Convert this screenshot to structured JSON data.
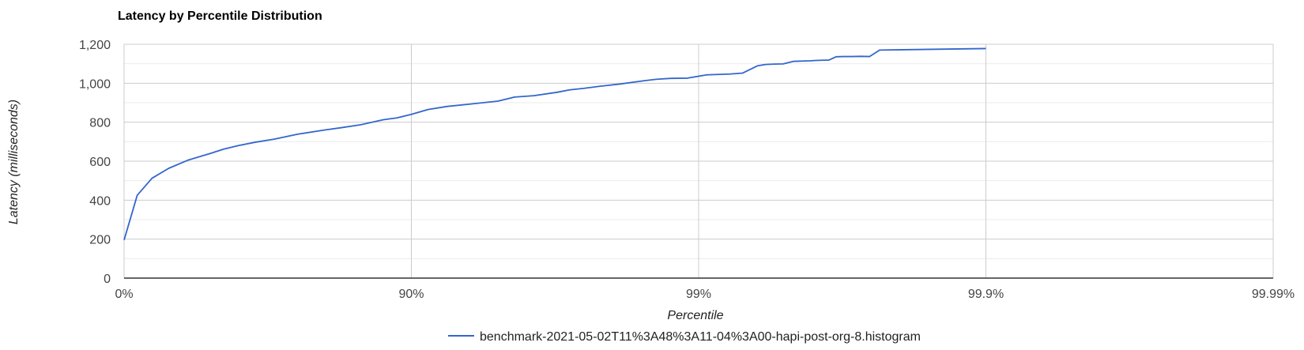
{
  "chart_data": {
    "type": "line",
    "title": "Latency by Percentile Distribution",
    "xlabel": "Percentile",
    "ylabel": "Latency (milliseconds)",
    "x_scale": "log-percentile",
    "x_ticks": [
      "0%",
      "90%",
      "99%",
      "99.9%",
      "99.99%"
    ],
    "x_tick_values": [
      0,
      90,
      99,
      99.9,
      99.99
    ],
    "ylim": [
      0,
      1200
    ],
    "y_ticks": [
      "0",
      "200",
      "400",
      "600",
      "800",
      "1,000",
      "1,200"
    ],
    "y_tick_values": [
      0,
      200,
      400,
      600,
      800,
      1000,
      1200
    ],
    "grid": true,
    "legend_position": "bottom",
    "series": [
      {
        "name": "benchmark-2021-05-02T11%3A48%3A11-04%3A00-hapi-post-org-8.histogram",
        "color": "#3366cc",
        "points": [
          [
            0,
            195
          ],
          [
            10,
            425
          ],
          [
            20,
            512
          ],
          [
            30,
            563
          ],
          [
            40,
            605
          ],
          [
            50,
            640
          ],
          [
            55,
            662
          ],
          [
            60,
            680
          ],
          [
            65,
            697
          ],
          [
            70,
            713
          ],
          [
            75,
            738
          ],
          [
            80,
            760
          ],
          [
            82.5,
            772
          ],
          [
            85,
            787
          ],
          [
            87.5,
            813
          ],
          [
            88.75,
            822
          ],
          [
            90,
            840
          ],
          [
            91.25,
            865
          ],
          [
            92.5,
            881
          ],
          [
            93.75,
            893
          ],
          [
            95,
            908
          ],
          [
            95.625,
            929
          ],
          [
            96.25,
            936
          ],
          [
            96.875,
            953
          ],
          [
            97.1875,
            966
          ],
          [
            97.5,
            974
          ],
          [
            97.8125,
            985
          ],
          [
            98.125,
            996
          ],
          [
            98.4375,
            1012
          ],
          [
            98.5938,
            1020
          ],
          [
            98.75,
            1025
          ],
          [
            98.9062,
            1026
          ],
          [
            99.0625,
            1043
          ],
          [
            99.1406,
            1045
          ],
          [
            99.2188,
            1047
          ],
          [
            99.2969,
            1052
          ],
          [
            99.375,
            1089
          ],
          [
            99.4141,
            1096
          ],
          [
            99.4531,
            1098
          ],
          [
            99.4922,
            1099
          ],
          [
            99.5312,
            1112
          ],
          [
            99.5508,
            1113
          ],
          [
            99.5703,
            1114
          ],
          [
            99.5898,
            1115
          ],
          [
            99.6094,
            1117
          ],
          [
            99.6289,
            1118
          ],
          [
            99.6484,
            1119
          ],
          [
            99.668,
            1136
          ],
          [
            99.6875,
            1137
          ],
          [
            99.707,
            1137
          ],
          [
            99.7266,
            1138
          ],
          [
            99.7461,
            1137
          ],
          [
            99.7656,
            1170
          ],
          [
            99.9,
            1178
          ]
        ]
      }
    ]
  }
}
